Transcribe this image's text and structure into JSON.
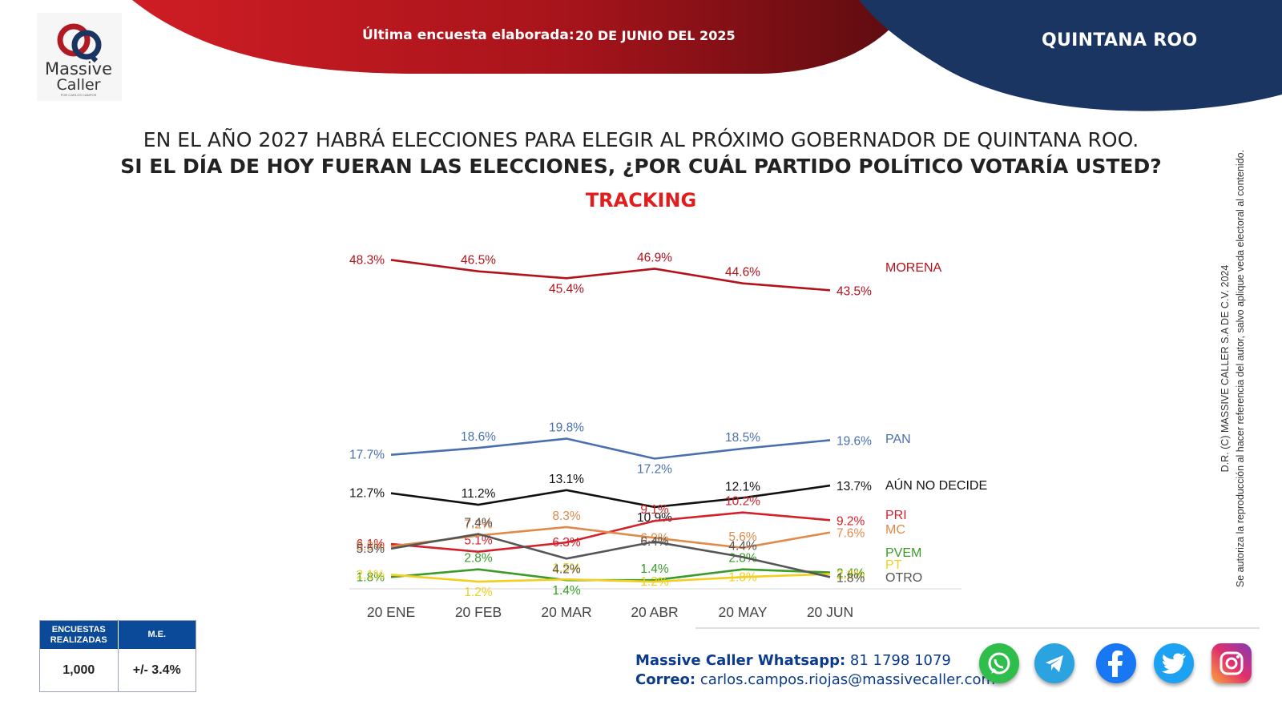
{
  "header": {
    "survey_label": "Última encuesta elaborada:",
    "survey_date": "20 DE JUNIO DEL 2025",
    "region": "QUINTANA ROO",
    "brand_line1": "Massive",
    "brand_line2": "Caller",
    "brand_tagline": "POR CARLOS CAMPOS"
  },
  "question": {
    "line1": "EN EL AÑO 2027 HABRÁ ELECCIONES PARA ELEGIR AL PRÓXIMO GOBERNADOR DE QUINTANA ROO.",
    "line2": "SI EL DÍA DE HOY FUERAN LAS ELECCIONES, ¿POR CUÁL PARTIDO POLÍTICO VOTARÍA USTED?",
    "subtitle": "TRACKING"
  },
  "colors": {
    "red_header": "#b3141c",
    "navy": "#1b3563",
    "accent_red": "#e11d1d",
    "table_blue": "#0b4a99"
  },
  "chart_data": {
    "type": "line",
    "title": "TRACKING",
    "categories": [
      "20 ENE",
      "20 FEB",
      "20 MAR",
      "20 ABR",
      "20 MAY",
      "20 JUN"
    ],
    "xlabel": "",
    "ylabel": "",
    "unit": "%",
    "series": [
      {
        "name": "MORENA",
        "color": "#b3121b",
        "labels": [
          "48.3%",
          "46.5%",
          "45.4%",
          "46.9%",
          "44.6%",
          "43.5%"
        ],
        "values": [
          48.3,
          46.5,
          45.4,
          46.9,
          44.6,
          43.5
        ]
      },
      {
        "name": "PAN",
        "color": "#4a6fb0",
        "labels": [
          "17.7%",
          "18.6%",
          "19.8%",
          "17.2%",
          "18.5%",
          "19.6%"
        ],
        "values": [
          17.7,
          18.6,
          19.8,
          17.2,
          18.5,
          19.6
        ]
      },
      {
        "name": "AÚN NO DECIDE",
        "color": "#111111",
        "labels": [
          "12.7%",
          "11.2%",
          "13.1%",
          "10.9%",
          "12.1%",
          "13.7%"
        ],
        "values": [
          12.7,
          11.2,
          13.1,
          10.9,
          12.1,
          13.7
        ]
      },
      {
        "name": "PRI",
        "color": "#d4202a",
        "labels": [
          "6.1%",
          "5.1%",
          "6.3%",
          "9.1%",
          "10.2%",
          "9.2%"
        ],
        "values": [
          6.1,
          5.1,
          6.3,
          9.1,
          10.2,
          9.2
        ]
      },
      {
        "name": "MC",
        "color": "#e08a4a",
        "labels": [
          "5.8%",
          "7.2%",
          "8.3%",
          "6.9%",
          "5.6%",
          "7.6%"
        ],
        "values": [
          5.8,
          7.2,
          8.3,
          6.9,
          5.6,
          7.6
        ]
      },
      {
        "name": "PVEM",
        "color": "#3a9a2a",
        "labels": [
          "1.8%",
          "2.8%",
          "1.4%",
          "1.4%",
          "2.8%",
          "2.4%"
        ],
        "values": [
          1.8,
          2.8,
          1.4,
          1.4,
          2.8,
          2.4
        ]
      },
      {
        "name": "PT",
        "color": "#f2cf1f",
        "labels": [
          "2.1%",
          "1.2%",
          "1.5%",
          "1.2%",
          "1.8%",
          "2.2%"
        ],
        "values": [
          2.1,
          1.2,
          1.5,
          1.2,
          1.8,
          2.2
        ]
      },
      {
        "name": "OTRO",
        "color": "#555555",
        "labels": [
          "5.5%",
          "7.4%",
          "4.2%",
          "6.4%",
          "4.4%",
          "1.8%"
        ],
        "values": [
          5.5,
          7.4,
          4.2,
          6.4,
          4.4,
          1.8
        ]
      }
    ]
  },
  "copyright": {
    "line1": "D.R. (C) MASSIVE CALLER S.A DE C.V. 2024",
    "line2": "Se autoriza la reproducción al hacer referencia del autor, salvo aplique veda electoral al contenido."
  },
  "stats_table": {
    "col1_header": "ENCUESTAS REALIZADAS",
    "col2_header": "M.E.",
    "col1_value": "1,000",
    "col2_value": "+/- 3.4%"
  },
  "contact": {
    "whatsapp_label": "Massive Caller Whatsapp:",
    "whatsapp_number": "81 1798 1079",
    "email_label": "Correo:",
    "email": "carlos.campos.riojas@massivecaller.com"
  },
  "social": [
    {
      "name": "whatsapp-icon",
      "color": "#2fbe4b"
    },
    {
      "name": "telegram-icon",
      "color": "#2aa3e0"
    },
    {
      "name": "facebook-icon",
      "color": "#1877f2"
    },
    {
      "name": "twitter-icon",
      "color": "#1da1f2"
    },
    {
      "name": "instagram-icon",
      "color": "#c13584"
    }
  ]
}
